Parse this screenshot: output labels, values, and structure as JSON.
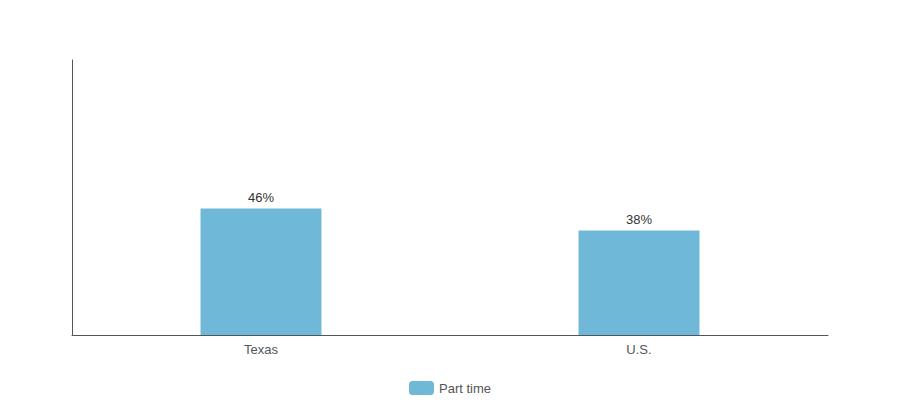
{
  "chart_data": {
    "type": "bar",
    "categories": [
      "Texas",
      "U.S."
    ],
    "series": [
      {
        "name": "Part time",
        "color": "#70B8D8",
        "values": [
          46,
          38
        ],
        "value_labels": [
          "46%",
          "38%"
        ]
      }
    ],
    "ylim": [
      0,
      100
    ],
    "grid": false,
    "legend": "bottom",
    "data_labels": true,
    "tick_labels": "x"
  }
}
